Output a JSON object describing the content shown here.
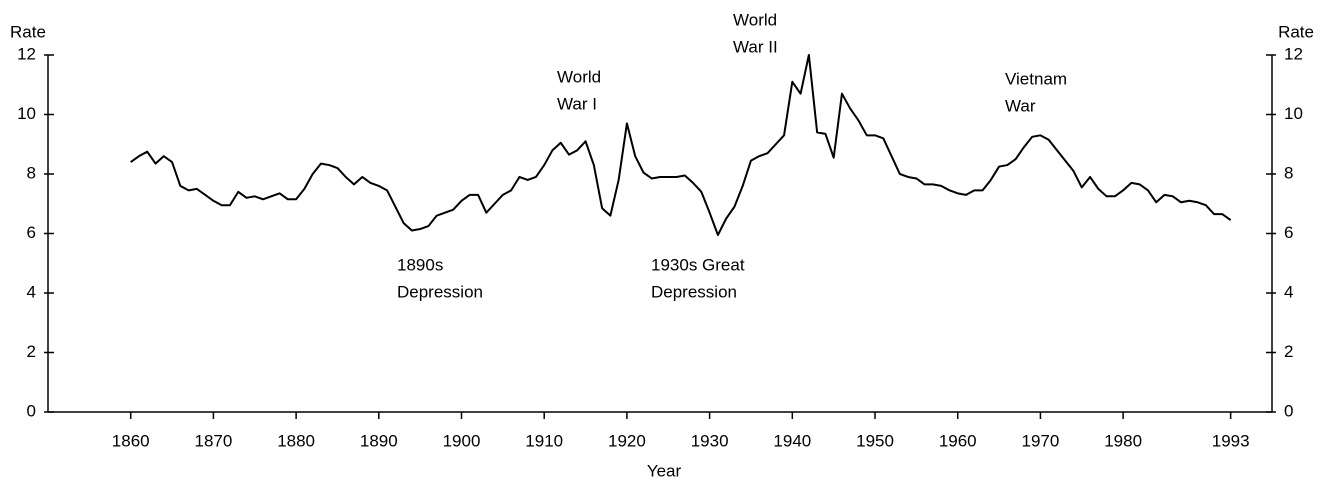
{
  "chart_data": {
    "type": "line",
    "xlabel": "Year",
    "ylabel": "Rate",
    "y2label": "Rate",
    "annotations": [
      [
        "World",
        "War I"
      ],
      [
        "World",
        "War II"
      ],
      [
        "Vietnam",
        "War"
      ],
      [
        "1890s",
        "Depression"
      ],
      [
        "1930s Great",
        "Depression"
      ]
    ],
    "x": [
      1860,
      1861,
      1862,
      1863,
      1864,
      1865,
      1866,
      1867,
      1868,
      1869,
      1870,
      1871,
      1872,
      1873,
      1874,
      1875,
      1876,
      1877,
      1878,
      1879,
      1880,
      1881,
      1882,
      1883,
      1884,
      1885,
      1886,
      1887,
      1888,
      1889,
      1890,
      1891,
      1892,
      1893,
      1894,
      1895,
      1896,
      1897,
      1898,
      1899,
      1900,
      1901,
      1902,
      1903,
      1904,
      1905,
      1906,
      1907,
      1908,
      1909,
      1910,
      1911,
      1912,
      1913,
      1914,
      1915,
      1916,
      1917,
      1918,
      1919,
      1920,
      1921,
      1922,
      1923,
      1924,
      1925,
      1926,
      1927,
      1928,
      1929,
      1930,
      1931,
      1932,
      1933,
      1934,
      1935,
      1936,
      1937,
      1938,
      1939,
      1940,
      1941,
      1942,
      1943,
      1944,
      1945,
      1946,
      1947,
      1948,
      1949,
      1950,
      1951,
      1952,
      1953,
      1954,
      1955,
      1956,
      1957,
      1958,
      1959,
      1960,
      1961,
      1962,
      1963,
      1964,
      1965,
      1966,
      1967,
      1968,
      1969,
      1970,
      1971,
      1972,
      1973,
      1974,
      1975,
      1976,
      1977,
      1978,
      1979,
      1980,
      1981,
      1982,
      1983,
      1984,
      1985,
      1986,
      1987,
      1988,
      1989,
      1990,
      1991,
      1992,
      1993
    ],
    "series": [
      {
        "name": "Rate",
        "color": "#000000",
        "values": [
          8.4,
          8.6,
          8.75,
          8.35,
          8.6,
          8.4,
          7.6,
          7.45,
          7.5,
          7.3,
          7.1,
          6.95,
          6.95,
          7.4,
          7.2,
          7.25,
          7.15,
          7.25,
          7.35,
          7.15,
          7.15,
          7.5,
          8.0,
          8.35,
          8.3,
          8.2,
          7.9,
          7.65,
          7.9,
          7.7,
          7.6,
          7.45,
          6.9,
          6.35,
          6.1,
          6.15,
          6.25,
          6.6,
          6.7,
          6.8,
          7.1,
          7.3,
          7.3,
          6.7,
          7.0,
          7.3,
          7.45,
          7.9,
          7.8,
          7.9,
          8.3,
          8.8,
          9.05,
          8.65,
          8.8,
          9.1,
          8.3,
          6.85,
          6.6,
          7.8,
          9.7,
          8.6,
          8.05,
          7.85,
          7.9,
          7.9,
          7.9,
          7.95,
          7.7,
          7.4,
          6.7,
          5.95,
          6.5,
          6.9,
          7.6,
          8.45,
          8.6,
          8.7,
          9.0,
          9.3,
          11.1,
          10.7,
          12.0,
          9.4,
          9.35,
          8.55,
          10.7,
          10.2,
          9.8,
          9.3,
          9.3,
          9.2,
          8.6,
          8.0,
          7.9,
          7.85,
          7.65,
          7.65,
          7.6,
          7.45,
          7.35,
          7.3,
          7.45,
          7.45,
          7.8,
          8.25,
          8.3,
          8.5,
          8.9,
          9.25,
          9.3,
          9.15,
          8.8,
          8.45,
          8.1,
          7.55,
          7.9,
          7.5,
          7.25,
          7.25,
          7.45,
          7.7,
          7.65,
          7.45,
          7.05,
          7.3,
          7.25,
          7.05,
          7.1,
          7.05,
          6.95,
          6.65,
          6.65,
          6.45
        ]
      }
    ],
    "xlim": [
      1850,
      1998
    ],
    "xticks": [
      1860,
      1870,
      1880,
      1890,
      1900,
      1910,
      1920,
      1930,
      1940,
      1950,
      1960,
      1970,
      1980,
      1993
    ],
    "ylim": [
      0,
      12
    ],
    "yticks": [
      0,
      2,
      4,
      6,
      8,
      10,
      12
    ],
    "y2lim": [
      0,
      12
    ],
    "y2ticks": [
      0,
      2,
      4,
      6,
      8,
      10,
      12
    ]
  }
}
